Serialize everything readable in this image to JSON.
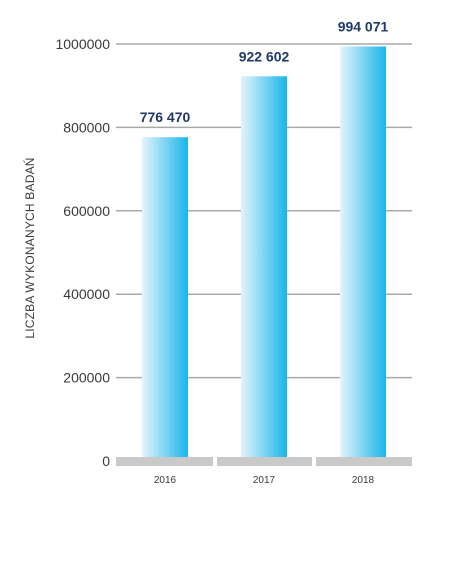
{
  "chart_data": {
    "type": "bar",
    "categories": [
      "2016",
      "2017",
      "2018"
    ],
    "values": [
      776470,
      922602,
      994071
    ],
    "data_labels": [
      "776 470",
      "922 602",
      "994 071"
    ],
    "title": "",
    "xlabel": "",
    "ylabel": "LICZBA WYKONANYCH BADAŃ",
    "ylim": [
      0,
      1000000
    ],
    "yticks": [
      0,
      200000,
      400000,
      600000,
      800000,
      1000000
    ],
    "ytick_labels": [
      "0",
      "200000",
      "400000",
      "600000",
      "800000",
      "1000000"
    ],
    "grid": true,
    "legend": "none",
    "colors": {
      "bar_light": "#e4f4fc",
      "bar_dark": "#19b5ea",
      "grid": "#a9a9a9",
      "baseline": "#c9c9c9",
      "data_label": "#1f3a68"
    }
  }
}
